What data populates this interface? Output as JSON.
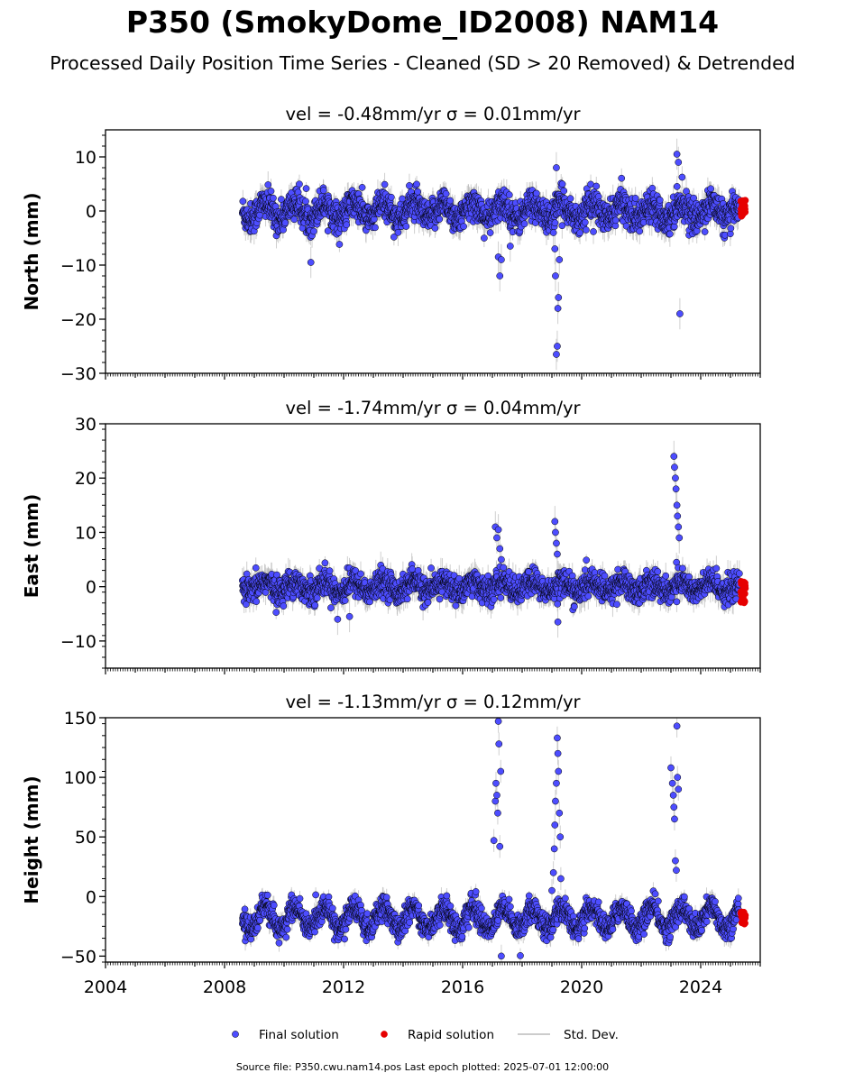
{
  "title": "P350 (SmokyDome_ID2008) NAM14",
  "subtitle": "Processed Daily Position Time Series - Cleaned (SD > 20 Removed) & Detrended",
  "footer": "Source file: P350.cwu.nam14.pos  Last epoch plotted: 2025-07-01 12:00:00",
  "legend": {
    "final": "Final solution",
    "rapid": "Rapid solution",
    "stddev": "Std. Dev."
  },
  "colors": {
    "final": "#4d4dff",
    "rapid": "#e60000",
    "stddev": "#bbbbbb",
    "marker_edge": "#000000"
  },
  "chart_data": [
    {
      "type": "scatter",
      "component": "north",
      "panel_title": "vel = -0.48mm/yr   σ = 0.01mm/yr",
      "ylabel": "North (mm)",
      "ylim": [
        -30,
        15
      ],
      "yticks": [
        10,
        0,
        -10,
        -20,
        -30
      ],
      "xlim": [
        2004,
        2026
      ],
      "x_tick_labels": [],
      "baseline": {
        "start": 2008.6,
        "end": 2025.3,
        "period_mean": 0,
        "amplitude": 1.5,
        "noise": 1.4,
        "err": 1.8,
        "anomalies": [
          {
            "x": 2010.9,
            "y": -9.5
          },
          {
            "x": 2017.2,
            "y": -8.5
          },
          {
            "x": 2017.25,
            "y": -12
          },
          {
            "x": 2017.3,
            "y": -9
          },
          {
            "x": 2017.6,
            "y": -6.5
          },
          {
            "x": 2019.05,
            "y": -4
          },
          {
            "x": 2019.1,
            "y": -7
          },
          {
            "x": 2019.12,
            "y": -12
          },
          {
            "x": 2019.15,
            "y": -26.5
          },
          {
            "x": 2019.18,
            "y": -25
          },
          {
            "x": 2019.2,
            "y": -18
          },
          {
            "x": 2019.22,
            "y": -16
          },
          {
            "x": 2019.25,
            "y": -9
          },
          {
            "x": 2019.15,
            "y": 8
          },
          {
            "x": 2023.2,
            "y": 10.5
          },
          {
            "x": 2023.25,
            "y": 9
          },
          {
            "x": 2023.3,
            "y": -19
          }
        ]
      },
      "rapid": {
        "start": 2025.35,
        "end": 2025.5,
        "center": 0.5,
        "spread": 3
      }
    },
    {
      "type": "scatter",
      "component": "east",
      "panel_title": "vel = -1.74mm/yr   σ = 0.04mm/yr",
      "ylabel": "East (mm)",
      "ylim": [
        -15,
        30
      ],
      "yticks": [
        30,
        20,
        10,
        0,
        -10
      ],
      "xlim": [
        2004,
        2026
      ],
      "x_tick_labels": [],
      "baseline": {
        "start": 2008.6,
        "end": 2025.3,
        "period_mean": 0,
        "amplitude": 1.0,
        "noise": 1.2,
        "err": 1.8,
        "anomalies": [
          {
            "x": 2011.8,
            "y": -6
          },
          {
            "x": 2012.2,
            "y": -5.5
          },
          {
            "x": 2017.1,
            "y": 11
          },
          {
            "x": 2017.15,
            "y": 9
          },
          {
            "x": 2017.2,
            "y": 10.5
          },
          {
            "x": 2017.25,
            "y": 7
          },
          {
            "x": 2017.3,
            "y": 5
          },
          {
            "x": 2019.1,
            "y": 12
          },
          {
            "x": 2019.12,
            "y": 10
          },
          {
            "x": 2019.15,
            "y": 8
          },
          {
            "x": 2019.18,
            "y": 6
          },
          {
            "x": 2019.2,
            "y": -6.5
          },
          {
            "x": 2023.1,
            "y": 24
          },
          {
            "x": 2023.12,
            "y": 22
          },
          {
            "x": 2023.15,
            "y": 20
          },
          {
            "x": 2023.17,
            "y": 18
          },
          {
            "x": 2023.2,
            "y": 15
          },
          {
            "x": 2023.22,
            "y": 13
          },
          {
            "x": 2023.25,
            "y": 11
          },
          {
            "x": 2023.28,
            "y": 9
          }
        ]
      },
      "rapid": {
        "start": 2025.35,
        "end": 2025.5,
        "center": -1,
        "spread": 4
      }
    },
    {
      "type": "scatter",
      "component": "height",
      "panel_title": "vel = -1.13mm/yr   σ = 0.12mm/yr",
      "ylabel": "Height (mm)",
      "ylim": [
        -55,
        150
      ],
      "yticks": [
        150,
        100,
        50,
        0,
        -50
      ],
      "xlim": [
        2004,
        2026
      ],
      "x_tick_labels": [
        "2004",
        "2008",
        "2012",
        "2016",
        "2020",
        "2024"
      ],
      "baseline": {
        "start": 2008.6,
        "end": 2025.3,
        "period_mean": -18,
        "amplitude": 9,
        "noise": 5,
        "err": 6,
        "anomalies": [
          {
            "x": 2017.05,
            "y": 47
          },
          {
            "x": 2017.1,
            "y": 80
          },
          {
            "x": 2017.12,
            "y": 95
          },
          {
            "x": 2017.15,
            "y": 85
          },
          {
            "x": 2017.18,
            "y": 70
          },
          {
            "x": 2017.2,
            "y": 147
          },
          {
            "x": 2017.22,
            "y": 128
          },
          {
            "x": 2017.25,
            "y": 42
          },
          {
            "x": 2017.28,
            "y": 105
          },
          {
            "x": 2017.3,
            "y": -50
          },
          {
            "x": 2019.0,
            "y": 5
          },
          {
            "x": 2019.05,
            "y": 20
          },
          {
            "x": 2019.08,
            "y": 40
          },
          {
            "x": 2019.1,
            "y": 60
          },
          {
            "x": 2019.12,
            "y": 80
          },
          {
            "x": 2019.15,
            "y": 95
          },
          {
            "x": 2019.18,
            "y": 133
          },
          {
            "x": 2019.2,
            "y": 120
          },
          {
            "x": 2019.22,
            "y": 105
          },
          {
            "x": 2019.25,
            "y": 70
          },
          {
            "x": 2019.28,
            "y": 50
          },
          {
            "x": 2019.3,
            "y": 15
          },
          {
            "x": 2023.0,
            "y": 108
          },
          {
            "x": 2023.05,
            "y": 95
          },
          {
            "x": 2023.08,
            "y": 85
          },
          {
            "x": 2023.1,
            "y": 75
          },
          {
            "x": 2023.12,
            "y": 65
          },
          {
            "x": 2023.15,
            "y": 30
          },
          {
            "x": 2023.18,
            "y": 22
          },
          {
            "x": 2023.2,
            "y": 143
          },
          {
            "x": 2023.22,
            "y": 100
          },
          {
            "x": 2023.25,
            "y": 90
          }
        ]
      },
      "rapid": {
        "start": 2025.35,
        "end": 2025.5,
        "center": -18,
        "spread": 10
      }
    }
  ]
}
